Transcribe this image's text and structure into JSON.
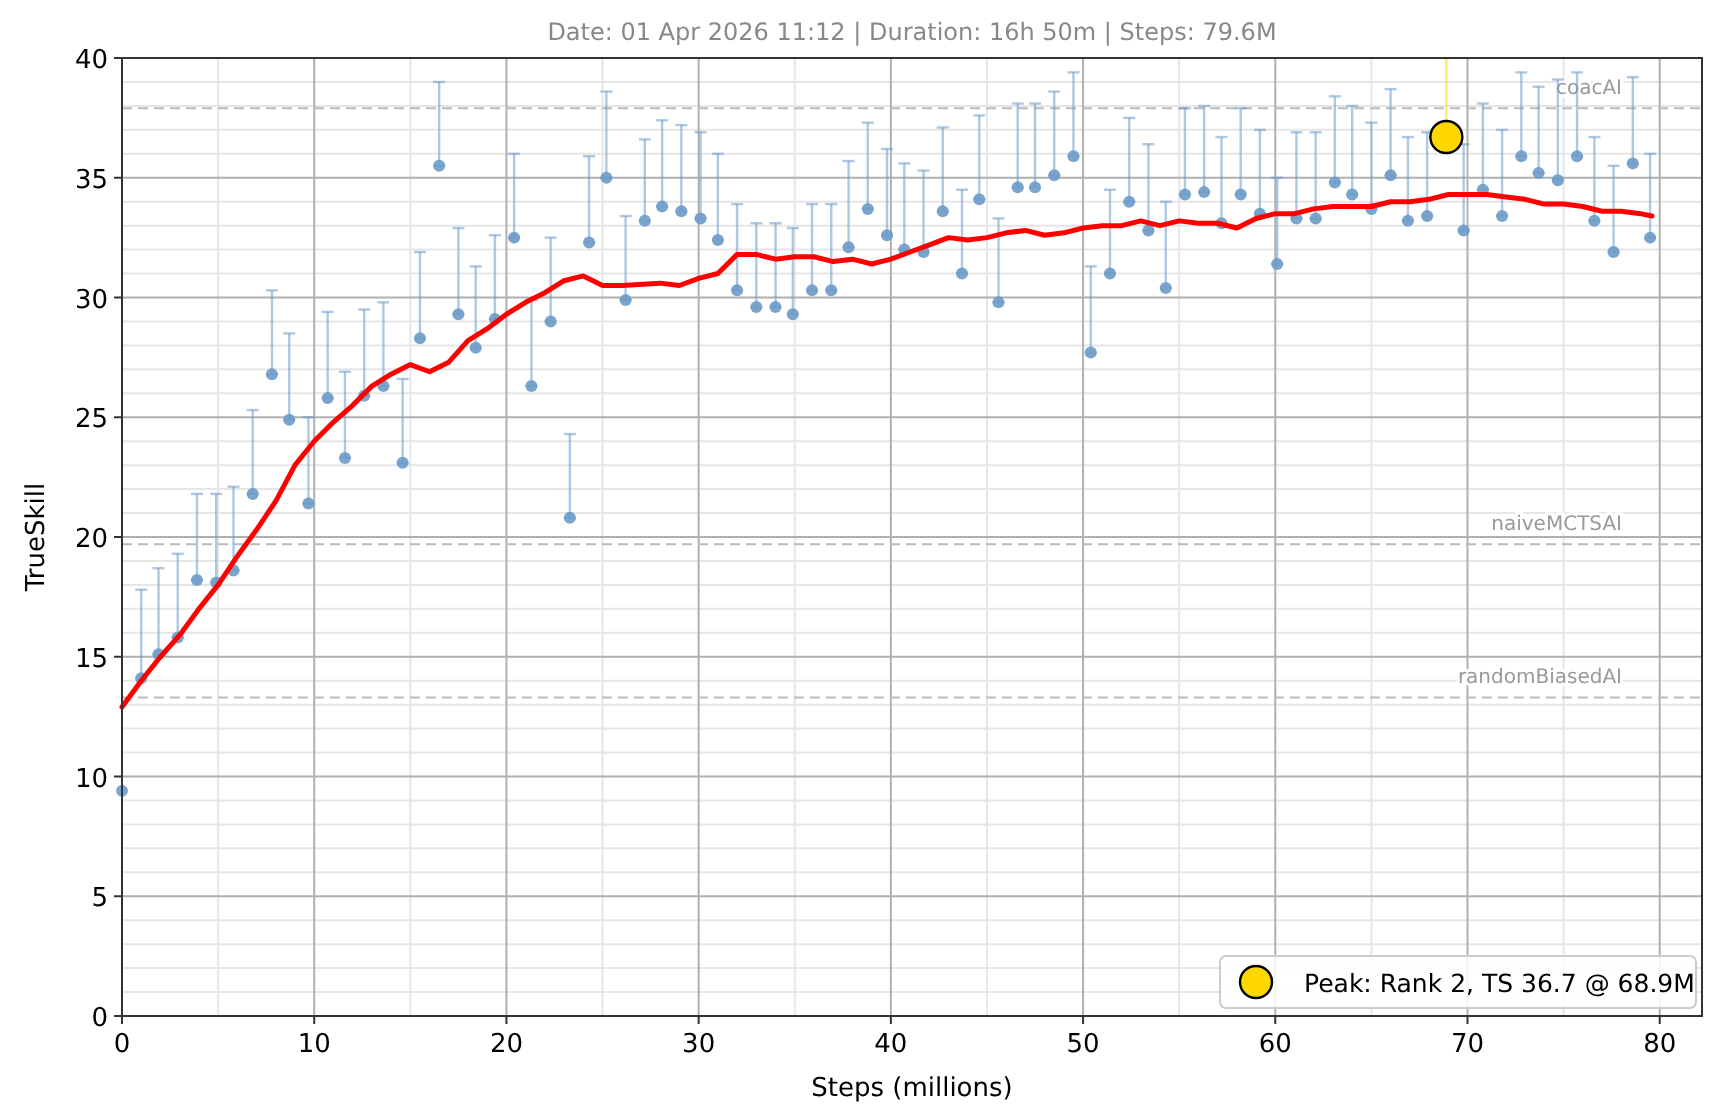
{
  "chart_data": {
    "type": "scatter",
    "title": "Date: 01 Apr 2026 11:12  |  Duration: 16h 50m  |  Steps: 79.6M",
    "xlabel": "Steps (millions)",
    "ylabel": "TrueSkill",
    "xlim": [
      0,
      82.2
    ],
    "ylim": [
      0,
      40
    ],
    "xticks": [
      0,
      10,
      20,
      30,
      40,
      50,
      60,
      70,
      80
    ],
    "yticks": [
      0,
      5,
      10,
      15,
      20,
      25,
      30,
      35,
      40
    ],
    "grid": true,
    "legend": "bottom right",
    "ref_lines": [
      {
        "axis": "y",
        "value": 37.9,
        "label": "coacAI",
        "color": "#bbbbbb",
        "line_style": "dashed"
      },
      {
        "axis": "y",
        "value": 19.7,
        "label": "naiveMCTSAI",
        "color": "#bbbbbb",
        "line_style": "dashed"
      },
      {
        "axis": "y",
        "value": 13.3,
        "label": "randomBiasedAI",
        "color": "#bbbbbb",
        "line_style": "dashed"
      }
    ],
    "series": [
      {
        "marker": "circle",
        "color": "#6b9bc8",
        "x": [
          0,
          1.0,
          1.9,
          2.9,
          3.9,
          4.9,
          5.8,
          6.8,
          7.8,
          8.7,
          9.7,
          10.7,
          11.6,
          12.6,
          13.6,
          14.6,
          15.5,
          16.5,
          17.5,
          18.4,
          19.4,
          20.4,
          21.3,
          22.3,
          23.3,
          24.3,
          25.2,
          26.2,
          27.2,
          28.1,
          29.1,
          30.1,
          31.0,
          32.0,
          33.0,
          34.0,
          34.9,
          35.9,
          36.9,
          37.8,
          38.8,
          39.8,
          40.7,
          41.7,
          42.7,
          43.7,
          44.6,
          45.6,
          46.6,
          47.5,
          48.5,
          49.5,
          50.4,
          51.4,
          52.4,
          53.4,
          54.3,
          55.3,
          56.3,
          57.2,
          58.2,
          59.2,
          60.1,
          61.1,
          62.1,
          63.1,
          64.0,
          65.0,
          66.0,
          66.9,
          67.9,
          69.8,
          70.8,
          71.8,
          72.8,
          73.7,
          74.7,
          75.7,
          76.6,
          77.6,
          78.6,
          79.5
        ],
        "values": [
          9.4,
          14.1,
          15.1,
          15.8,
          18.2,
          18.1,
          18.6,
          21.8,
          26.8,
          24.9,
          21.4,
          25.8,
          23.3,
          25.9,
          26.3,
          23.1,
          28.3,
          35.5,
          29.3,
          27.9,
          29.1,
          32.5,
          26.3,
          29.0,
          20.8,
          32.3,
          35.0,
          29.9,
          33.2,
          33.8,
          33.6,
          33.3,
          32.4,
          30.3,
          29.6,
          29.6,
          29.3,
          30.3,
          30.3,
          32.1,
          33.7,
          32.6,
          32.0,
          31.9,
          33.6,
          31.0,
          34.1,
          29.8,
          34.6,
          34.6,
          35.1,
          35.9,
          27.7,
          31.0,
          34.0,
          32.8,
          30.4,
          34.3,
          34.4,
          33.1,
          34.3,
          33.5,
          31.4,
          33.3,
          33.3,
          34.8,
          34.3,
          33.7,
          35.1,
          33.2,
          33.4,
          32.8,
          34.5,
          33.4,
          35.9,
          35.2,
          34.9,
          35.9,
          33.2,
          31.9,
          35.6,
          32.5
        ],
        "errors": [
          null,
          [
            14.1,
            17.8
          ],
          [
            15.1,
            18.7
          ],
          [
            15.8,
            19.3
          ],
          [
            18.2,
            21.8
          ],
          [
            18.1,
            21.8
          ],
          [
            18.6,
            22.1
          ],
          [
            21.8,
            25.3
          ],
          [
            26.8,
            30.3
          ],
          [
            24.9,
            28.5
          ],
          [
            21.4,
            25.0
          ],
          [
            25.8,
            29.4
          ],
          [
            23.3,
            26.9
          ],
          [
            25.9,
            29.5
          ],
          [
            26.3,
            29.8
          ],
          [
            23.1,
            26.6
          ],
          [
            28.3,
            31.9
          ],
          [
            35.5,
            39.0
          ],
          [
            29.3,
            32.9
          ],
          [
            27.9,
            31.3
          ],
          [
            29.1,
            32.6
          ],
          [
            32.5,
            36.0
          ],
          [
            26.3,
            29.9
          ],
          [
            29.0,
            32.5
          ],
          [
            20.8,
            24.3
          ],
          [
            32.3,
            35.9
          ],
          [
            35.0,
            38.6
          ],
          [
            29.9,
            33.4
          ],
          [
            33.2,
            36.6
          ],
          [
            33.8,
            37.4
          ],
          [
            33.6,
            37.2
          ],
          [
            33.3,
            36.9
          ],
          [
            32.4,
            36.0
          ],
          [
            30.3,
            33.9
          ],
          [
            29.6,
            33.1
          ],
          [
            29.6,
            33.1
          ],
          [
            29.3,
            32.9
          ],
          [
            30.3,
            33.9
          ],
          [
            30.3,
            33.9
          ],
          [
            32.1,
            35.7
          ],
          [
            33.7,
            37.3
          ],
          [
            32.6,
            36.2
          ],
          [
            32.0,
            35.6
          ],
          [
            31.9,
            35.3
          ],
          [
            33.6,
            37.1
          ],
          [
            31.0,
            34.5
          ],
          [
            34.1,
            37.6
          ],
          [
            29.8,
            33.3
          ],
          [
            34.6,
            38.1
          ],
          [
            34.6,
            38.1
          ],
          [
            35.1,
            38.6
          ],
          [
            35.9,
            39.4
          ],
          [
            27.7,
            31.3
          ],
          [
            31.0,
            34.5
          ],
          [
            34.0,
            37.5
          ],
          [
            32.8,
            36.4
          ],
          [
            30.4,
            34.0
          ],
          [
            34.3,
            37.9
          ],
          [
            34.4,
            38.0
          ],
          [
            33.1,
            36.7
          ],
          [
            34.3,
            37.9
          ],
          [
            33.5,
            37.0
          ],
          [
            31.4,
            35.0
          ],
          [
            33.3,
            36.9
          ],
          [
            33.3,
            36.9
          ],
          [
            34.8,
            38.4
          ],
          [
            34.3,
            38.0
          ],
          [
            33.7,
            37.3
          ],
          [
            35.1,
            38.7
          ],
          [
            33.2,
            36.7
          ],
          [
            33.4,
            36.9
          ],
          [
            32.8,
            36.4
          ],
          [
            34.5,
            38.1
          ],
          [
            33.4,
            37.0
          ],
          [
            35.9,
            39.4
          ],
          [
            35.2,
            38.8
          ],
          [
            34.9,
            39.1
          ],
          [
            35.9,
            39.4
          ],
          [
            33.2,
            36.7
          ],
          [
            31.9,
            35.5
          ],
          [
            35.6,
            39.2
          ],
          [
            32.5,
            36.0
          ]
        ]
      },
      {
        "type": "line",
        "color": "#ff0000",
        "x": [
          0,
          1,
          2,
          3,
          4,
          5,
          6,
          7,
          8,
          9,
          10,
          11,
          12,
          13,
          14,
          15,
          16,
          17,
          18,
          19,
          20,
          21,
          22,
          23,
          24,
          25,
          26,
          28,
          29,
          30,
          31,
          32,
          33,
          34,
          35,
          36,
          37,
          38,
          39,
          40,
          41,
          42,
          43,
          44,
          45,
          46,
          47,
          48,
          49,
          50,
          51,
          52,
          53,
          54,
          55,
          56,
          57,
          58,
          59,
          60,
          61,
          62,
          63,
          64,
          65,
          66,
          67,
          68,
          69,
          70,
          71,
          72,
          73,
          74,
          75,
          76,
          77,
          78,
          79,
          79.6
        ],
        "values": [
          12.9,
          14.0,
          15.0,
          15.9,
          17.0,
          18.0,
          19.2,
          20.3,
          21.5,
          23.0,
          24.0,
          24.8,
          25.5,
          26.3,
          26.8,
          27.2,
          26.9,
          27.3,
          28.2,
          28.7,
          29.3,
          29.8,
          30.2,
          30.7,
          30.9,
          30.5,
          30.5,
          30.6,
          30.5,
          30.8,
          31.0,
          31.8,
          31.8,
          31.6,
          31.7,
          31.7,
          31.5,
          31.6,
          31.4,
          31.6,
          31.9,
          32.2,
          32.5,
          32.4,
          32.5,
          32.7,
          32.8,
          32.6,
          32.7,
          32.9,
          33.0,
          33.0,
          33.2,
          33.0,
          33.2,
          33.1,
          33.1,
          32.9,
          33.3,
          33.5,
          33.5,
          33.7,
          33.8,
          33.8,
          33.8,
          34.0,
          34.0,
          34.1,
          34.3,
          34.3,
          34.3,
          34.2,
          34.1,
          33.9,
          33.9,
          33.8,
          33.6,
          33.6,
          33.5,
          33.4
        ]
      },
      {
        "type": "scatter",
        "marker": "circle",
        "name": "Peak: Rank 2, TS 36.7 @ 68.9M",
        "color": "#ffd700",
        "x": [
          68.9
        ],
        "values": [
          36.7
        ],
        "errors": [
          [
            36.7,
            40
          ]
        ]
      }
    ]
  }
}
